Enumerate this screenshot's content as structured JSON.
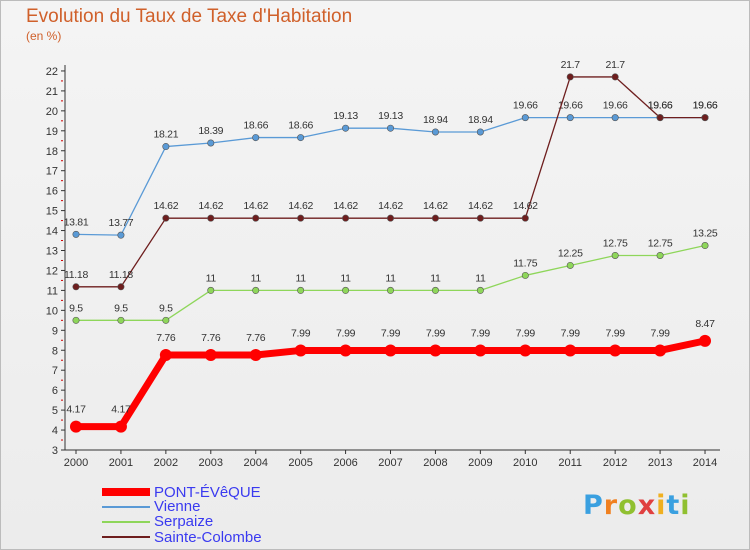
{
  "title": "Evolution du Taux de Taxe d'Habitation",
  "subtitle": "(en %)",
  "logo": "Proxiti",
  "colors": {
    "pont": "#ff0000",
    "vienne": "#5a9ad6",
    "serpaize": "#8ed65a",
    "sainte": "#6e1e1e"
  },
  "chart_data": {
    "type": "line",
    "title": "Evolution du Taux de Taxe d'Habitation",
    "ylabel": "(en %)",
    "xlabel": "",
    "ylim": [
      3,
      22
    ],
    "grid": false,
    "legend_placement": "bottom-left",
    "x": [
      "2000",
      "2001",
      "2002",
      "2003",
      "2004",
      "2005",
      "2006",
      "2007",
      "2008",
      "2009",
      "2010",
      "2011",
      "2012",
      "2013",
      "2014"
    ],
    "yticks": [
      "3",
      "4",
      "5",
      "6",
      "7",
      "8",
      "9",
      "10",
      "11",
      "12",
      "13",
      "14",
      "15",
      "16",
      "17",
      "18",
      "19",
      "20",
      "21",
      "22"
    ],
    "series": [
      {
        "name": "PONT-ÉVêQUE",
        "color": "#ff0000",
        "values": [
          4.17,
          4.17,
          7.76,
          7.76,
          7.76,
          7.99,
          7.99,
          7.99,
          7.99,
          7.99,
          7.99,
          7.99,
          7.99,
          7.99,
          8.47
        ],
        "labels": [
          "4.17",
          "4.17",
          "7.76",
          "7.76",
          "7.76",
          "7.99",
          "7.99",
          "7.99",
          "7.99",
          "7.99",
          "7.99",
          "7.99",
          "7.99",
          "7.99",
          "8.47"
        ]
      },
      {
        "name": "Vienne",
        "color": "#5a9ad6",
        "values": [
          13.81,
          13.77,
          18.21,
          18.39,
          18.66,
          18.66,
          19.13,
          19.13,
          18.94,
          18.94,
          19.66,
          19.66,
          19.66,
          19.66,
          19.66
        ],
        "labels": [
          "13.81",
          "13.77",
          "18.21",
          "18.39",
          "18.66",
          "18.66",
          "19.13",
          "19.13",
          "18.94",
          "18.94",
          "19.66",
          "19.66",
          "19.66",
          "19.66",
          "19.66"
        ]
      },
      {
        "name": "Serpaize",
        "color": "#8ed65a",
        "values": [
          9.5,
          9.5,
          9.5,
          11,
          11,
          11,
          11,
          11,
          11,
          11,
          11.75,
          12.25,
          12.75,
          12.75,
          13.25
        ],
        "labels": [
          "9.5",
          "9.5",
          "9.5",
          "11",
          "11",
          "11",
          "11",
          "11",
          "11",
          "11",
          "11.75",
          "12.25",
          "12.75",
          "12.75",
          "13.25"
        ]
      },
      {
        "name": "Sainte-Colombe",
        "color": "#6e1e1e",
        "values": [
          11.18,
          11.18,
          14.62,
          14.62,
          14.62,
          14.62,
          14.62,
          14.62,
          14.62,
          14.62,
          14.62,
          21.7,
          21.7,
          19.66,
          19.66
        ],
        "labels": [
          "11.18",
          "11.18",
          "14.62",
          "14.62",
          "14.62",
          "14.62",
          "14.62",
          "14.62",
          "14.62",
          "14.62",
          "14.62",
          "21.7",
          "21.7",
          "19.66",
          "19.66"
        ]
      }
    ]
  }
}
